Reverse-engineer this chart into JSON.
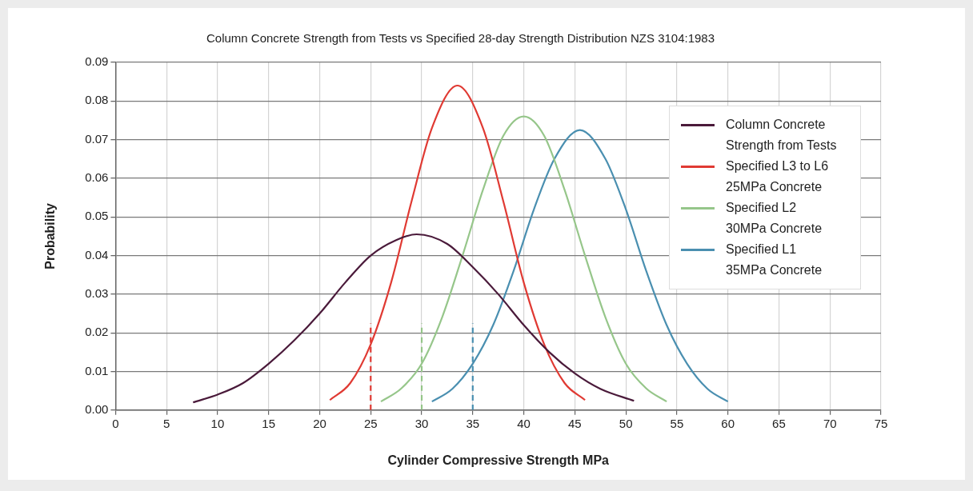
{
  "chart_data": {
    "type": "line",
    "title": "Column Concrete Strength from Tests vs Specified 28-day Strength Distribution NZS 3104:1983",
    "xlabel": "Cylinder Compressive Strength MPa",
    "ylabel": "Probability",
    "xlim": [
      0,
      75
    ],
    "xticks": [
      0,
      5,
      10,
      15,
      20,
      25,
      30,
      35,
      40,
      45,
      50,
      55,
      60,
      65,
      70,
      75
    ],
    "ylim": [
      0,
      0.09
    ],
    "yticks": [
      {
        "value": 0,
        "label": "0.00"
      },
      {
        "value": 0.01,
        "label": "0.01"
      },
      {
        "value": 0.02,
        "label": "0.02"
      },
      {
        "value": 0.03,
        "label": "0.03"
      },
      {
        "value": 0.04,
        "label": "0.04"
      },
      {
        "value": 0.05,
        "label": "0.05"
      },
      {
        "value": 0.06,
        "label": "0.06"
      },
      {
        "value": 0.07,
        "label": "0.07"
      },
      {
        "value": 0.08,
        "label": "0.08"
      },
      {
        "value": 0.09,
        "label": "0.09"
      }
    ],
    "grid": true,
    "legend": "top right",
    "marker": "none",
    "line_style": "solid",
    "series": [
      {
        "name": "Column Concrete Strength from Tests",
        "color": "#4a1a3a",
        "x": [
          7.6,
          10,
          12.5,
          15,
          17.5,
          20,
          22.5,
          25,
          27.5,
          29.5,
          32.5,
          35,
          37.5,
          40,
          42.5,
          45,
          47.5,
          50.8
        ],
        "values": [
          0.002,
          0.004,
          0.007,
          0.012,
          0.018,
          0.025,
          0.033,
          0.04,
          0.044,
          0.0455,
          0.043,
          0.037,
          0.03,
          0.022,
          0.015,
          0.0095,
          0.0055,
          0.0024
        ]
      },
      {
        "name": "Specified L3 to L6 25MPa Concrete",
        "color": "#e03a33",
        "x": [
          21,
          23,
          25,
          27,
          29,
          31,
          33.5,
          36,
          38,
          40,
          42,
          44,
          46
        ],
        "values": [
          0.0026,
          0.007,
          0.017,
          0.033,
          0.054,
          0.073,
          0.084,
          0.073,
          0.054,
          0.033,
          0.017,
          0.007,
          0.0026
        ]
      },
      {
        "name": "Specified L2 30MPa Concrete",
        "color": "#96c68a",
        "x": [
          26,
          28,
          30,
          32,
          34,
          36,
          38,
          40,
          42,
          44,
          46,
          48,
          50,
          52,
          54
        ],
        "values": [
          0.0022,
          0.0056,
          0.012,
          0.024,
          0.04,
          0.057,
          0.071,
          0.076,
          0.071,
          0.057,
          0.04,
          0.024,
          0.012,
          0.0056,
          0.0022
        ]
      },
      {
        "name": "Specified L1 35MPa Concrete",
        "color": "#4a8fb0",
        "x": [
          31,
          33,
          35,
          37,
          39,
          41,
          43,
          45.5,
          48,
          50,
          52,
          54,
          56,
          58,
          60
        ],
        "values": [
          0.0022,
          0.0055,
          0.012,
          0.022,
          0.036,
          0.052,
          0.065,
          0.0725,
          0.065,
          0.052,
          0.036,
          0.022,
          0.012,
          0.0055,
          0.0022
        ]
      },
      {
        "color": "#e03a33",
        "line_style": "dashed",
        "x": [
          25,
          25
        ],
        "values": [
          0,
          0.0225
        ]
      },
      {
        "color": "#96c68a",
        "line_style": "dashed",
        "x": [
          30,
          30
        ],
        "values": [
          0,
          0.0225
        ]
      },
      {
        "color": "#4a8fb0",
        "line_style": "dashed",
        "x": [
          35,
          35
        ],
        "values": [
          0,
          0.0225
        ]
      }
    ]
  }
}
